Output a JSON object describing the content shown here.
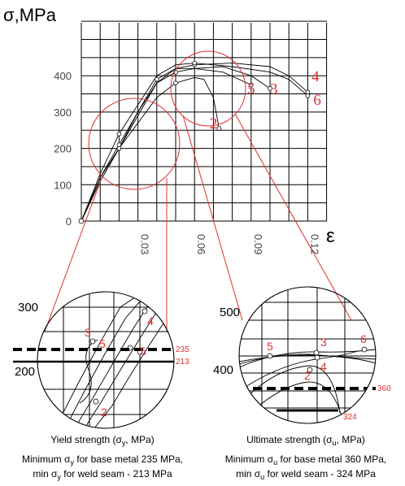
{
  "chart_data": {
    "type": "line",
    "y_axis_title": "σ,MPa",
    "x_axis_title": "ε",
    "y_ticks": [
      "0",
      "100",
      "200",
      "300",
      "400"
    ],
    "x_ticks": [
      "0.03",
      "0.06",
      "0.09",
      "0.12"
    ],
    "xlim": [
      0,
      0.14
    ],
    "ylim": [
      0,
      500
    ],
    "grid": true,
    "series": [
      {
        "name": "2",
        "x": [
          0,
          0.01,
          0.02,
          0.03,
          0.04,
          0.05,
          0.06,
          0.065,
          0.07,
          0.073
        ],
        "y": [
          0,
          120,
          200,
          270,
          340,
          380,
          395,
          390,
          340,
          255
        ]
      },
      {
        "name": "3",
        "x": [
          0,
          0.01,
          0.02,
          0.03,
          0.04,
          0.05,
          0.06,
          0.075,
          0.09,
          0.1
        ],
        "y": [
          0,
          110,
          200,
          290,
          380,
          410,
          420,
          425,
          400,
          365
        ]
      },
      {
        "name": "4",
        "x": [
          0,
          0.01,
          0.02,
          0.03,
          0.04,
          0.05,
          0.06,
          0.08,
          0.1,
          0.11,
          0.12
        ],
        "y": [
          0,
          110,
          200,
          300,
          380,
          420,
          430,
          435,
          425,
          400,
          355
        ]
      },
      {
        "name": "5",
        "x": [
          0,
          0.01,
          0.02,
          0.03,
          0.04,
          0.05,
          0.06,
          0.075,
          0.09
        ],
        "y": [
          0,
          120,
          210,
          300,
          390,
          420,
          420,
          410,
          375
        ]
      },
      {
        "name": "6",
        "x": [
          0,
          0.01,
          0.02,
          0.03,
          0.04,
          0.05,
          0.06,
          0.08,
          0.1,
          0.11,
          0.12
        ],
        "y": [
          0,
          130,
          240,
          320,
          400,
          430,
          435,
          425,
          410,
          390,
          345
        ]
      }
    ],
    "curve_labels": [
      {
        "text": "2",
        "x": 0.068,
        "y": 255
      },
      {
        "text": "5",
        "x": 0.088,
        "y": 350
      },
      {
        "text": "3",
        "x": 0.1,
        "y": 350
      },
      {
        "text": "4",
        "x": 0.122,
        "y": 385
      },
      {
        "text": "6",
        "x": 0.123,
        "y": 320
      }
    ]
  },
  "zoom_left": {
    "tick_300": "300",
    "tick_200": "200",
    "line_235": "235",
    "line_213": "213",
    "labels": [
      "3",
      "5",
      "4",
      "5",
      "2"
    ],
    "caption": "Yield strength (σ",
    "caption_sub": "y",
    "caption_end": ", MPa)",
    "note1_a": "Minimum σ",
    "note1_sub": "y",
    "note1_b": " for base metal 235 MPa,",
    "note2_a": "min σ",
    "note2_sub": "y",
    "note2_b": " for weld seam - 213 MPa"
  },
  "zoom_right": {
    "tick_500": "500",
    "tick_400": "400",
    "line_360": "360",
    "line_324": "324",
    "labels": [
      "5",
      "3",
      "6",
      "4",
      "2"
    ],
    "caption": "Ultimate strength (σ",
    "caption_sub": "u",
    "caption_end": ", MPa)",
    "note1_a": "Minimum σ",
    "note1_sub": "u",
    "note1_b": " for base metal 360 MPa,",
    "note2_a": "min σ",
    "note2_sub": "u",
    "note2_b": " for weld seam - 324 MPa"
  }
}
